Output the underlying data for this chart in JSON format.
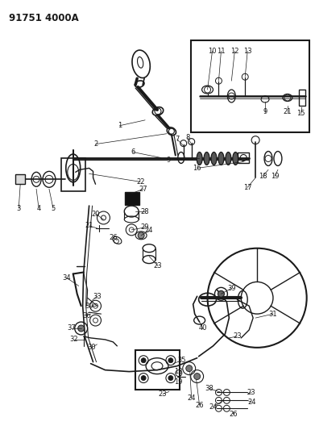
{
  "title": "91751 4000A",
  "bg_color": "#ffffff",
  "line_color": "#1a1a1a",
  "title_fontsize": 8.5,
  "title_fontweight": "bold",
  "fig_width": 3.91,
  "fig_height": 5.33,
  "dpi": 100
}
